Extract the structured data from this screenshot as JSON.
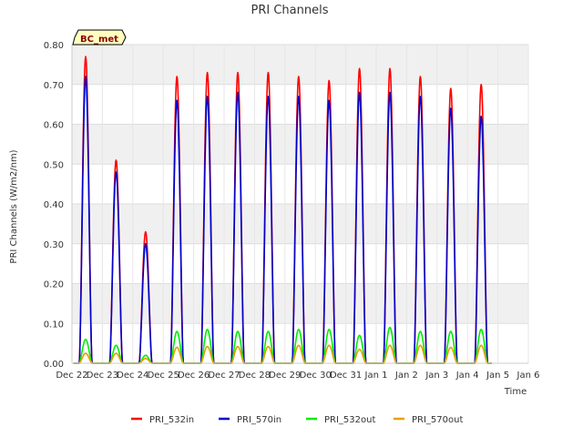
{
  "chart_data": {
    "type": "line",
    "title": "PRI Channels",
    "xlabel": "Time",
    "ylabel": "PRI Channels (W/m2/nm)",
    "ylim": [
      0,
      0.8
    ],
    "xlim": [
      0,
      15
    ],
    "grid": true,
    "badge": "BC_met",
    "legend_position": "bottom",
    "x_ticks": [
      {
        "value": 0,
        "label": "Dec 22"
      },
      {
        "value": 1,
        "label": "Dec 23"
      },
      {
        "value": 2,
        "label": "Dec 24"
      },
      {
        "value": 3,
        "label": "Dec 25"
      },
      {
        "value": 4,
        "label": "Dec 26"
      },
      {
        "value": 5,
        "label": "Dec 27"
      },
      {
        "value": 6,
        "label": "Dec 28"
      },
      {
        "value": 7,
        "label": "Dec 29"
      },
      {
        "value": 8,
        "label": "Dec 30"
      },
      {
        "value": 9,
        "label": "Dec 31"
      },
      {
        "value": 10,
        "label": "Jan 1"
      },
      {
        "value": 11,
        "label": "Jan 2"
      },
      {
        "value": 12,
        "label": "Jan 3"
      },
      {
        "value": 13,
        "label": "Jan 4"
      },
      {
        "value": 14,
        "label": "Jan 5"
      },
      {
        "value": 15,
        "label": "Jan 6"
      }
    ],
    "y_ticks": [
      {
        "value": 0.0,
        "label": "0.00"
      },
      {
        "value": 0.1,
        "label": "0.10"
      },
      {
        "value": 0.2,
        "label": "0.20"
      },
      {
        "value": 0.3,
        "label": "0.30"
      },
      {
        "value": 0.4,
        "label": "0.40"
      },
      {
        "value": 0.5,
        "label": "0.50"
      },
      {
        "value": 0.6,
        "label": "0.60"
      },
      {
        "value": 0.7,
        "label": "0.70"
      },
      {
        "value": 0.8,
        "label": "0.80"
      }
    ],
    "day_noon_x": [
      0.45,
      1.45,
      2.42,
      3.45,
      4.45,
      5.45,
      6.45,
      7.45,
      8.45,
      9.45,
      10.45,
      11.45,
      12.45,
      13.45
    ],
    "series": [
      {
        "name": "PRI_532in",
        "color": "#ff0000",
        "daily_peaks": [
          0.77,
          0.51,
          0.33,
          0.72,
          0.73,
          0.73,
          0.73,
          0.72,
          0.71,
          0.74,
          0.74,
          0.72,
          0.69,
          0.7
        ]
      },
      {
        "name": "PRI_570in",
        "color": "#0000cc",
        "daily_peaks": [
          0.72,
          0.48,
          0.3,
          0.66,
          0.67,
          0.68,
          0.67,
          0.67,
          0.66,
          0.68,
          0.68,
          0.67,
          0.64,
          0.62
        ]
      },
      {
        "name": "PRI_532out",
        "color": "#00ee00",
        "daily_peaks": [
          0.06,
          0.045,
          0.02,
          0.08,
          0.085,
          0.08,
          0.08,
          0.085,
          0.085,
          0.07,
          0.09,
          0.08,
          0.08,
          0.085
        ]
      },
      {
        "name": "PRI_570out",
        "color": "#e6a000",
        "daily_peaks": [
          0.025,
          0.025,
          0.012,
          0.04,
          0.042,
          0.042,
          0.042,
          0.045,
          0.045,
          0.035,
          0.045,
          0.045,
          0.04,
          0.045
        ]
      }
    ]
  }
}
